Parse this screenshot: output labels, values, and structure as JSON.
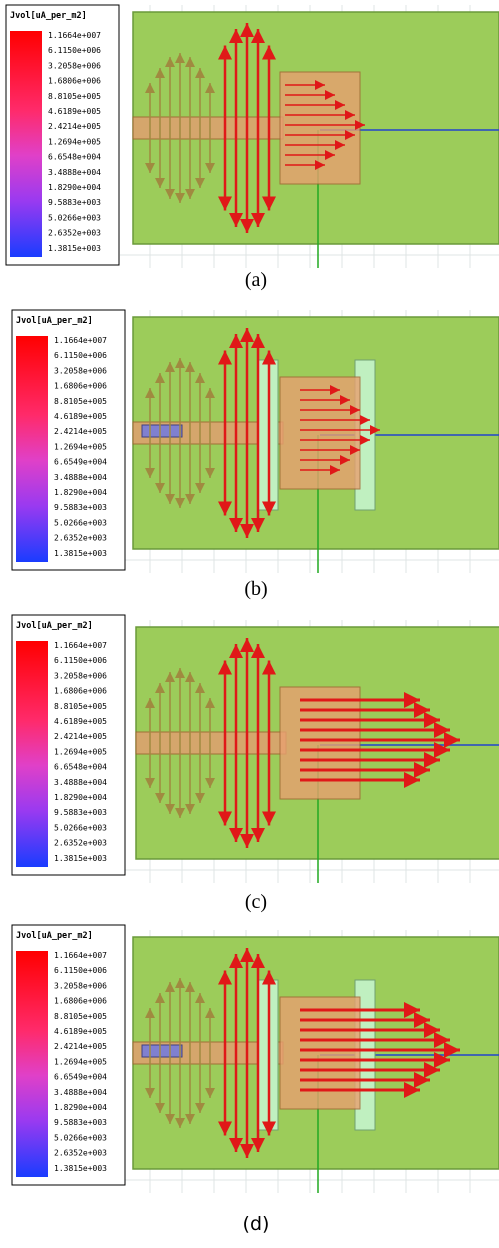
{
  "panels": [
    {
      "legend_title": "Jvol[uA_per_m2]",
      "caption": "(a)",
      "legend_labels": [
        "1.1664e+007",
        "6.1150e+006",
        "3.2058e+006",
        "1.6806e+006",
        "8.8105e+005",
        "4.6189e+005",
        "2.4214e+005",
        "1.2694e+005",
        "6.6548e+004",
        "3.4888e+004",
        "1.8290e+004",
        "9.5883e+003",
        "5.0266e+003",
        "2.6352e+003",
        "1.3815e+003"
      ]
    },
    {
      "legend_title": "Jvol[uA_per_m2]",
      "caption": "(b)",
      "legend_labels": [
        "1.1664e+007",
        "6.1150e+006",
        "3.2058e+006",
        "1.6806e+006",
        "8.8105e+005",
        "4.6189e+005",
        "2.4214e+005",
        "1.2694e+005",
        "6.6549e+004",
        "3.4888e+004",
        "1.8290e+004",
        "9.5883e+003",
        "5.0266e+003",
        "2.6352e+003",
        "1.3815e+003"
      ]
    },
    {
      "legend_title": "Jvol[uA_per_m2]",
      "caption": "(c)",
      "legend_labels": [
        "1.1664e+007",
        "6.1150e+006",
        "3.2058e+006",
        "1.6806e+006",
        "8.8105e+005",
        "4.6189e+005",
        "2.4214e+005",
        "1.2694e+005",
        "6.6548e+004",
        "3.4888e+004",
        "1.8290e+004",
        "9.5883e+003",
        "5.0266e+003",
        "2.6352e+003",
        "1.3815e+003"
      ]
    },
    {
      "legend_title": "Jvol[uA_per_m2]",
      "caption": "(d)",
      "legend_labels": [
        "1.1664e+007",
        "6.1150e+006",
        "3.2058e+006",
        "1.6806e+006",
        "8.8105e+005",
        "4.6189e+005",
        "2.4214e+005",
        "1.2694e+005",
        "6.6549e+004",
        "3.4888e+004",
        "1.8290e+004",
        "9.5883e+003",
        "5.0266e+003",
        "2.6352e+003",
        "1.3815e+003"
      ]
    }
  ]
}
